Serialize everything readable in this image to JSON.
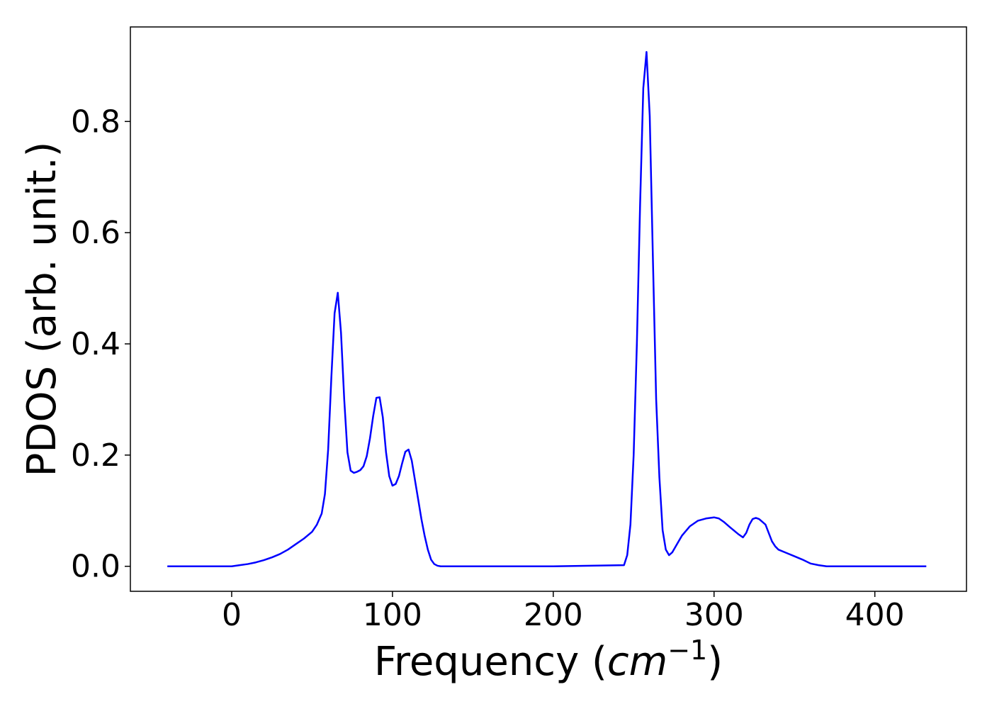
{
  "chart_data": {
    "type": "line",
    "title": "",
    "xlabel": {
      "text": "Frequency (",
      "math": "cm",
      "superscript": "−1",
      "close": ")"
    },
    "ylabel": "PDOS (arb. unit.)",
    "xlim": [
      -63,
      457
    ],
    "ylim": [
      -0.045,
      0.97
    ],
    "xticks": [
      0,
      100,
      200,
      300,
      400
    ],
    "xtick_labels": [
      "0",
      "100",
      "200",
      "300",
      "400"
    ],
    "yticks": [
      0.0,
      0.2,
      0.4,
      0.6,
      0.8
    ],
    "ytick_labels": [
      "0.0",
      "0.2",
      "0.4",
      "0.6",
      "0.8"
    ],
    "grid": false,
    "series": [
      {
        "color": "#0000ff",
        "x": [
          -40,
          -20,
          0,
          5,
          10,
          15,
          20,
          25,
          30,
          35,
          40,
          45,
          50,
          53,
          56,
          58,
          60,
          62,
          64,
          66,
          68,
          70,
          72,
          74,
          76,
          78,
          80,
          82,
          84,
          86,
          88,
          90,
          92,
          94,
          96,
          98,
          100,
          102,
          104,
          106,
          108,
          110,
          112,
          114,
          116,
          118,
          120,
          122,
          124,
          126,
          128,
          130,
          132,
          134,
          136,
          138,
          140,
          142,
          145,
          150,
          200,
          244,
          246,
          248,
          250,
          252,
          254,
          256,
          258,
          260,
          262,
          264,
          266,
          268,
          270,
          272,
          274,
          276,
          278,
          280,
          285,
          290,
          295,
          300,
          303,
          306,
          310,
          315,
          318,
          320,
          322,
          324,
          326,
          328,
          330,
          332,
          334,
          336,
          338,
          340,
          345,
          350,
          355,
          360,
          365,
          370,
          375,
          380,
          385,
          390,
          393,
          396,
          400,
          410,
          432
        ],
        "y": [
          0.0,
          0.0,
          0.0,
          0.002,
          0.004,
          0.007,
          0.011,
          0.016,
          0.022,
          0.03,
          0.04,
          0.05,
          0.062,
          0.075,
          0.095,
          0.13,
          0.21,
          0.34,
          0.455,
          0.492,
          0.42,
          0.3,
          0.205,
          0.172,
          0.168,
          0.17,
          0.173,
          0.18,
          0.198,
          0.23,
          0.27,
          0.303,
          0.304,
          0.268,
          0.205,
          0.162,
          0.145,
          0.148,
          0.162,
          0.185,
          0.206,
          0.21,
          0.19,
          0.155,
          0.12,
          0.085,
          0.055,
          0.03,
          0.012,
          0.004,
          0.001,
          0.0,
          0.0,
          0.0,
          0.0,
          0.0,
          0.0,
          0.0,
          0.0,
          0.0,
          0.0,
          0.002,
          0.02,
          0.075,
          0.2,
          0.4,
          0.65,
          0.86,
          0.925,
          0.81,
          0.55,
          0.3,
          0.16,
          0.065,
          0.03,
          0.02,
          0.025,
          0.035,
          0.045,
          0.055,
          0.072,
          0.082,
          0.086,
          0.088,
          0.086,
          0.08,
          0.07,
          0.058,
          0.052,
          0.06,
          0.075,
          0.085,
          0.087,
          0.085,
          0.08,
          0.075,
          0.06,
          0.045,
          0.036,
          0.03,
          0.024,
          0.018,
          0.012,
          0.005,
          0.002,
          0.0,
          0.0,
          0.0,
          0.0,
          0.0,
          0.0,
          0.0,
          0.0,
          0.0,
          0.0
        ]
      }
    ]
  }
}
